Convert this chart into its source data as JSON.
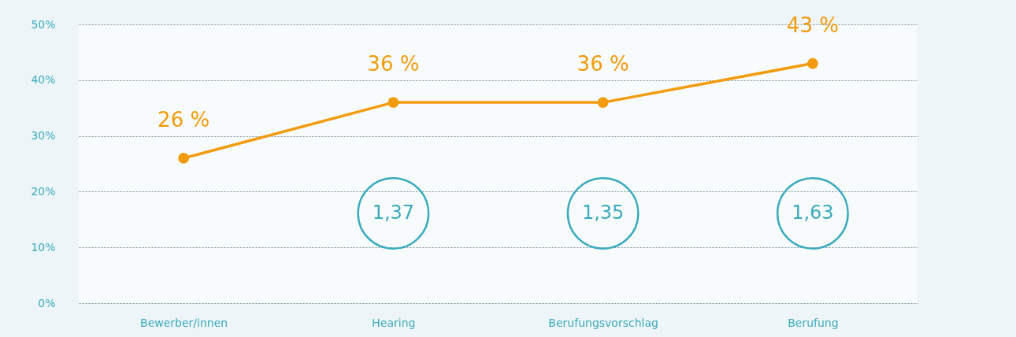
{
  "chart_data": {
    "type": "line",
    "categories": [
      "Bewerber/innen",
      "Hearing",
      "Berufungsvorschlag",
      "Berufung"
    ],
    "series": [
      {
        "color": "#f29b0e",
        "values": [
          26,
          36,
          36,
          43
        ],
        "value_labels": [
          "26 %",
          "36 %",
          "36 %",
          "43 %"
        ]
      }
    ],
    "ylim": [
      0,
      50
    ],
    "yticks": [
      {
        "value": 0,
        "label": "0%"
      },
      {
        "value": 10,
        "label": "10%"
      },
      {
        "value": 20,
        "label": "20%"
      },
      {
        "value": 30,
        "label": "30%"
      },
      {
        "value": 40,
        "label": "40%"
      },
      {
        "value": 50,
        "label": "50%"
      }
    ],
    "annotations": [
      "1,37",
      "1,35",
      "1,63"
    ],
    "grid": "y",
    "marker": "circle"
  }
}
